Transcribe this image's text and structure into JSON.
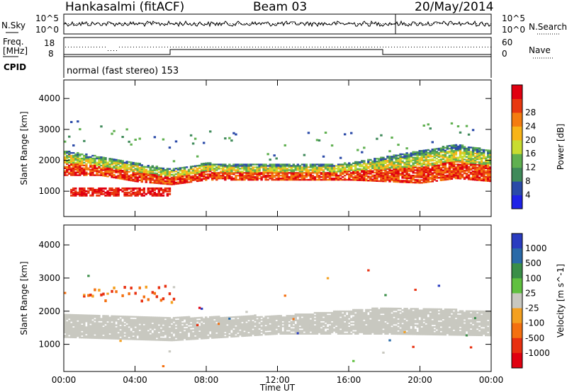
{
  "header": {
    "station": "Hankasalmi (fitACF)",
    "beam": "Beam 03",
    "date": "20/May/2014"
  },
  "aux_panels": {
    "nsky_label": "N.Sky",
    "nsky_ticks": [
      "10^5",
      "10^0"
    ],
    "nsearch_label": "N.Search",
    "freq_label_1": "Freq.",
    "freq_label_2": "[MHz]",
    "freq_ticks": [
      "18",
      "8"
    ],
    "nave_ticks": [
      "60",
      "0"
    ],
    "nave_label": "Nave",
    "cpid_label": "CPID",
    "cpid_text": "normal (fast stereo) 153"
  },
  "colors": {
    "power": [
      "#1f22e6",
      "#2a4aa8",
      "#3f8a5a",
      "#60b050",
      "#c8dc30",
      "#f8b418",
      "#f47c10",
      "#e83810",
      "#e00010"
    ],
    "velocity": [
      "#2a3cc0",
      "#2a6aa8",
      "#3a8e48",
      "#60c040",
      "#c8c8c0",
      "#f4a020",
      "#f47010",
      "#e83010",
      "#e00010"
    ],
    "ground_scatter": "#c8c8c0"
  },
  "chart_data": [
    {
      "type": "heatmap",
      "panel": "power",
      "title": "",
      "xlabel": "",
      "ylabel": "Slant Range [km]",
      "ylim": [
        180,
        4600
      ],
      "yticks": [
        "1000",
        "2000",
        "3000",
        "4000"
      ],
      "colorbar_label": "Power [dB]",
      "colorbar_ticks": [
        "4",
        "8",
        "12",
        "16",
        "20",
        "24",
        "28"
      ],
      "main_echo_band_km": [
        {
          "x": 0,
          "low": 1500,
          "high": 2300
        },
        {
          "x": 2,
          "low": 1500,
          "high": 2100
        },
        {
          "x": 4,
          "low": 1300,
          "high": 1900
        },
        {
          "x": 6,
          "low": 1200,
          "high": 1700
        },
        {
          "x": 8,
          "low": 1350,
          "high": 1900
        },
        {
          "x": 10,
          "low": 1350,
          "high": 1850
        },
        {
          "x": 12,
          "low": 1350,
          "high": 1850
        },
        {
          "x": 14,
          "low": 1350,
          "high": 1850
        },
        {
          "x": 16,
          "low": 1350,
          "high": 1900
        },
        {
          "x": 18,
          "low": 1300,
          "high": 2100
        },
        {
          "x": 20,
          "low": 1250,
          "high": 2300
        },
        {
          "x": 22,
          "low": 1400,
          "high": 2500
        },
        {
          "x": 24,
          "low": 1300,
          "high": 2300
        }
      ]
    },
    {
      "type": "heatmap",
      "panel": "velocity",
      "title": "",
      "xlabel": "Time UT",
      "ylabel": "Slant Range [km]",
      "ylim": [
        180,
        4600
      ],
      "yticks": [
        "1000",
        "2000",
        "3000",
        "4000"
      ],
      "xticks": [
        "00:00",
        "04:00",
        "08:00",
        "12:00",
        "16:00",
        "20:00",
        "00:00"
      ],
      "colorbar_label": "Velocity [m s^-1]",
      "colorbar_ticks": [
        "1000",
        "500",
        "100",
        "25",
        "-25",
        "-100",
        "-500",
        "-1000"
      ],
      "ground_scatter_band_km": [
        {
          "x": 0,
          "low": 1200,
          "high": 1900
        },
        {
          "x": 6,
          "low": 1100,
          "high": 1800
        },
        {
          "x": 12,
          "low": 1300,
          "high": 1850
        },
        {
          "x": 18,
          "low": 1300,
          "high": 2100
        },
        {
          "x": 24,
          "low": 1250,
          "high": 2000
        }
      ]
    }
  ]
}
